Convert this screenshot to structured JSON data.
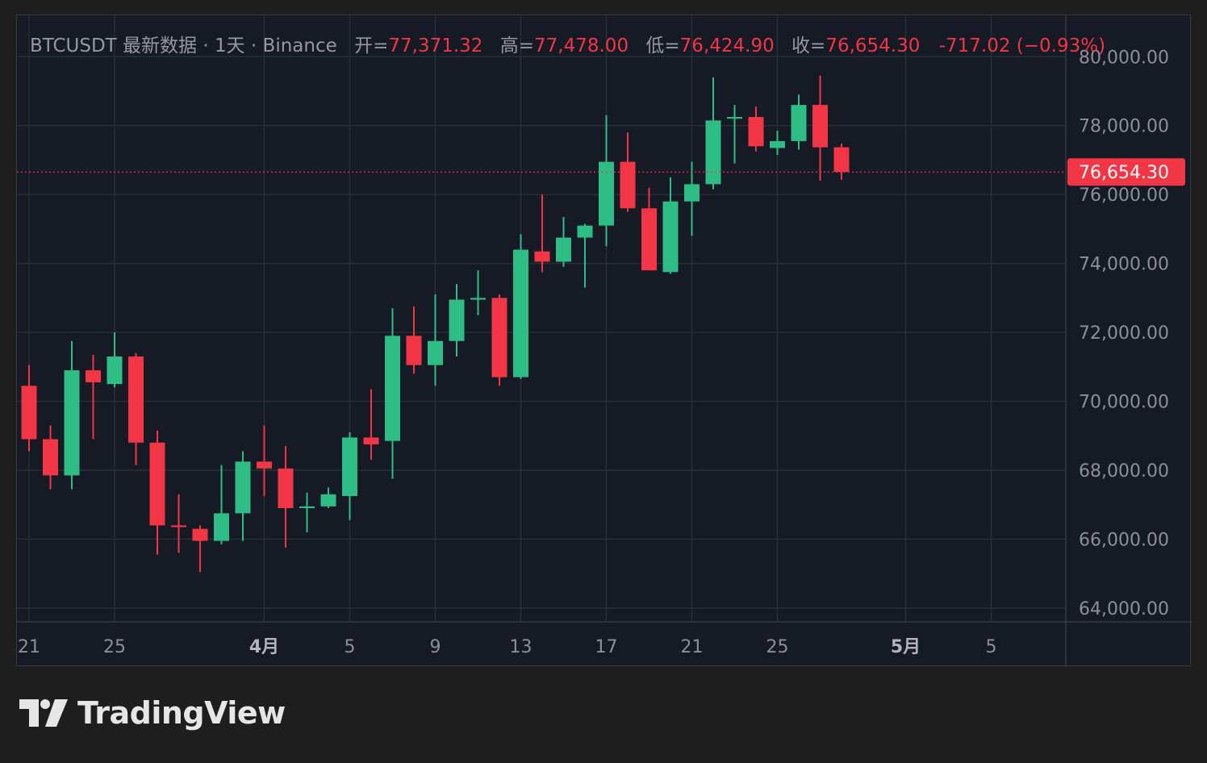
{
  "legend": {
    "symbol": "BTCUSDT 最新数据 · 1天 · Binance",
    "open_label": "开=",
    "open": "77,371.32",
    "high_label": "高=",
    "high": "77,478.00",
    "low_label": "低=",
    "low": "76,424.90",
    "close_label": "收=",
    "close": "76,654.30",
    "change": "-717.02 (−0.93%)"
  },
  "brand": {
    "name": "TradingView"
  },
  "colors": {
    "up": "#2ebd85",
    "down": "#f23645",
    "background": "#161a25",
    "grid": "#2b2f3a",
    "text": "#8c8f99"
  },
  "chart_data": {
    "type": "candlestick",
    "symbol": "BTCUSDT",
    "interval": "1D",
    "exchange": "Binance",
    "ylim": [
      63600,
      81200
    ],
    "yticks": [
      80000,
      78000,
      76000,
      74000,
      72000,
      70000,
      68000,
      66000,
      64000
    ],
    "ytick_labels": [
      "80,000.00",
      "78,000.00",
      "76,000.00",
      "74,000.00",
      "72,000.00",
      "70,000.00",
      "68,000.00",
      "66,000.00",
      "64,000.00"
    ],
    "xticks": [
      {
        "day": 0,
        "label": "21",
        "month": false
      },
      {
        "day": 4,
        "label": "25",
        "month": false
      },
      {
        "day": 11,
        "label": "4月",
        "month": true
      },
      {
        "day": 15,
        "label": "5",
        "month": false
      },
      {
        "day": 19,
        "label": "9",
        "month": false
      },
      {
        "day": 23,
        "label": "13",
        "month": false
      },
      {
        "day": 27,
        "label": "17",
        "month": false
      },
      {
        "day": 31,
        "label": "21",
        "month": false
      },
      {
        "day": 35,
        "label": "25",
        "month": false
      },
      {
        "day": 41,
        "label": "5月",
        "month": true
      },
      {
        "day": 45,
        "label": "5",
        "month": false
      }
    ],
    "last_price": 76654.3,
    "last_price_label": "76,654.30",
    "candles": [
      {
        "day": 0,
        "o": 70450,
        "h": 71050,
        "l": 68550,
        "c": 68900
      },
      {
        "day": 1,
        "o": 68900,
        "h": 69300,
        "l": 67450,
        "c": 67850
      },
      {
        "day": 2,
        "o": 67850,
        "h": 71750,
        "l": 67450,
        "c": 70900
      },
      {
        "day": 3,
        "o": 70900,
        "h": 71350,
        "l": 68900,
        "c": 70550
      },
      {
        "day": 4,
        "o": 70500,
        "h": 72000,
        "l": 70400,
        "c": 71300
      },
      {
        "day": 5,
        "o": 71300,
        "h": 71400,
        "l": 68150,
        "c": 68800
      },
      {
        "day": 6,
        "o": 68800,
        "h": 69150,
        "l": 65550,
        "c": 66400
      },
      {
        "day": 7,
        "o": 66400,
        "h": 67300,
        "l": 65600,
        "c": 66350
      },
      {
        "day": 8,
        "o": 66300,
        "h": 66400,
        "l": 65050,
        "c": 65950
      },
      {
        "day": 9,
        "o": 65950,
        "h": 68150,
        "l": 65850,
        "c": 66750
      },
      {
        "day": 10,
        "o": 66750,
        "h": 68550,
        "l": 65950,
        "c": 68250
      },
      {
        "day": 11,
        "o": 68250,
        "h": 69300,
        "l": 67250,
        "c": 68050
      },
      {
        "day": 12,
        "o": 68050,
        "h": 68700,
        "l": 65750,
        "c": 66900
      },
      {
        "day": 13,
        "o": 66900,
        "h": 67350,
        "l": 66200,
        "c": 66950
      },
      {
        "day": 14,
        "o": 66950,
        "h": 67500,
        "l": 66900,
        "c": 67300
      },
      {
        "day": 15,
        "o": 67250,
        "h": 69100,
        "l": 66550,
        "c": 68950
      },
      {
        "day": 16,
        "o": 68950,
        "h": 70350,
        "l": 68300,
        "c": 68750
      },
      {
        "day": 17,
        "o": 68850,
        "h": 72700,
        "l": 67750,
        "c": 71900
      },
      {
        "day": 18,
        "o": 71900,
        "h": 72750,
        "l": 70800,
        "c": 71050
      },
      {
        "day": 19,
        "o": 71050,
        "h": 73100,
        "l": 70450,
        "c": 71750
      },
      {
        "day": 20,
        "o": 71750,
        "h": 73400,
        "l": 71300,
        "c": 72950
      },
      {
        "day": 21,
        "o": 72950,
        "h": 73800,
        "l": 72500,
        "c": 73000
      },
      {
        "day": 22,
        "o": 73000,
        "h": 73100,
        "l": 70450,
        "c": 70700
      },
      {
        "day": 23,
        "o": 70700,
        "h": 74850,
        "l": 70650,
        "c": 74400
      },
      {
        "day": 24,
        "o": 74350,
        "h": 76000,
        "l": 73750,
        "c": 74050
      },
      {
        "day": 25,
        "o": 74050,
        "h": 75350,
        "l": 73900,
        "c": 74750
      },
      {
        "day": 26,
        "o": 74750,
        "h": 75150,
        "l": 73300,
        "c": 75100
      },
      {
        "day": 27,
        "o": 75100,
        "h": 78300,
        "l": 74500,
        "c": 76950
      },
      {
        "day": 28,
        "o": 76950,
        "h": 77800,
        "l": 75500,
        "c": 75600
      },
      {
        "day": 29,
        "o": 75600,
        "h": 76200,
        "l": 73800,
        "c": 73800
      },
      {
        "day": 30,
        "o": 73750,
        "h": 76500,
        "l": 73700,
        "c": 75800
      },
      {
        "day": 31,
        "o": 75800,
        "h": 76950,
        "l": 74800,
        "c": 76300
      },
      {
        "day": 32,
        "o": 76300,
        "h": 79400,
        "l": 76150,
        "c": 78150
      },
      {
        "day": 33,
        "o": 78200,
        "h": 78600,
        "l": 76900,
        "c": 78250
      },
      {
        "day": 34,
        "o": 78250,
        "h": 78550,
        "l": 77250,
        "c": 77400
      },
      {
        "day": 35,
        "o": 77350,
        "h": 77850,
        "l": 77150,
        "c": 77550
      },
      {
        "day": 36,
        "o": 77550,
        "h": 78900,
        "l": 77300,
        "c": 78600
      },
      {
        "day": 37,
        "o": 78600,
        "h": 79450,
        "l": 76400,
        "c": 77370
      },
      {
        "day": 38,
        "o": 77371.32,
        "h": 77478.0,
        "l": 76424.9,
        "c": 76654.3
      }
    ]
  }
}
